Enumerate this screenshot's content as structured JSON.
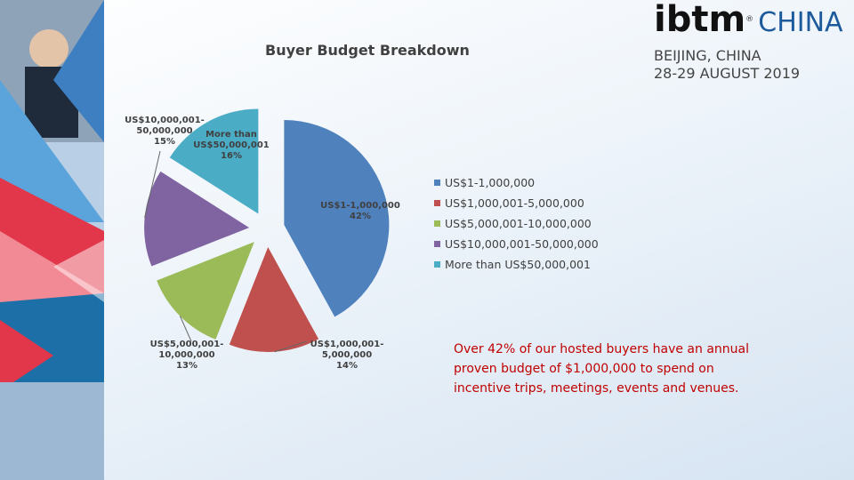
{
  "header": {
    "brand": "ibtm",
    "mark": "®",
    "region": "CHINA",
    "location": "BEIJING, CHINA",
    "dates": "28-29 AUGUST 2019"
  },
  "chart_data": {
    "type": "pie",
    "title": "Buyer Budget Breakdown",
    "categories": [
      "US$1-1,000,000",
      "US$1,000,001-5,000,000",
      "US$5,000,001-10,000,000",
      "US$10,000,001-50,000,000",
      "More than US$50,000,001"
    ],
    "values": [
      42,
      14,
      13,
      15,
      16
    ],
    "value_labels": [
      "42%",
      "14%",
      "13%",
      "15%",
      "16%"
    ],
    "colors": [
      "#4f81bd",
      "#c0504d",
      "#9bbb59",
      "#8064a2",
      "#4bacc6"
    ],
    "legend": "right"
  },
  "caption": [
    "Over 42% of our hosted buyers have an annual",
    "proven budget of $1,000,000 to spend on",
    "incentive trips, meetings, events and venues."
  ]
}
